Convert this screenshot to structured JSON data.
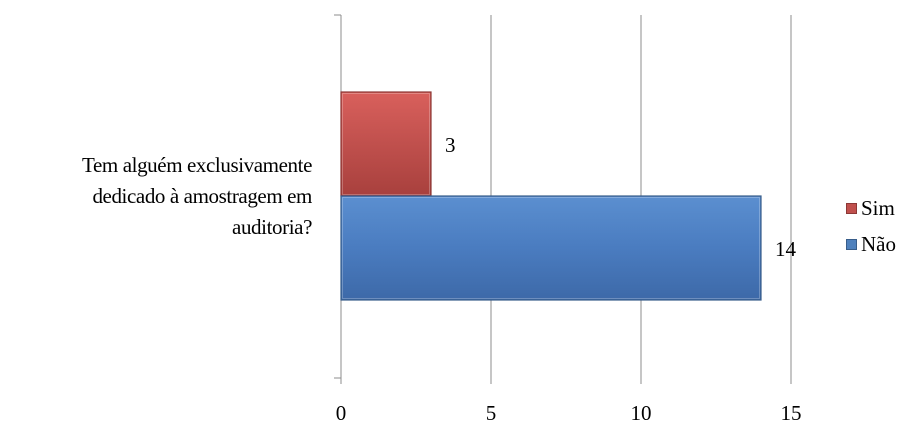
{
  "chart_data": {
    "type": "bar",
    "orientation": "horizontal",
    "categories": [
      "Tem alguém exclusivamente dedicado à amostragem em auditoria?"
    ],
    "category_lines": [
      "Tem alguém exclusivamente",
      "dedicado à amostragem em",
      "auditoria?"
    ],
    "series": [
      {
        "name": "Sim",
        "values": [
          3
        ],
        "color": "#c0504d"
      },
      {
        "name": "Não",
        "values": [
          14
        ],
        "color": "#4f81bd"
      }
    ],
    "xlim": [
      0,
      15
    ],
    "xticks": [
      "0",
      "5",
      "10",
      "15"
    ],
    "data_labels": [
      "3",
      "14"
    ],
    "grid": "vertical",
    "legend_position": "right"
  }
}
